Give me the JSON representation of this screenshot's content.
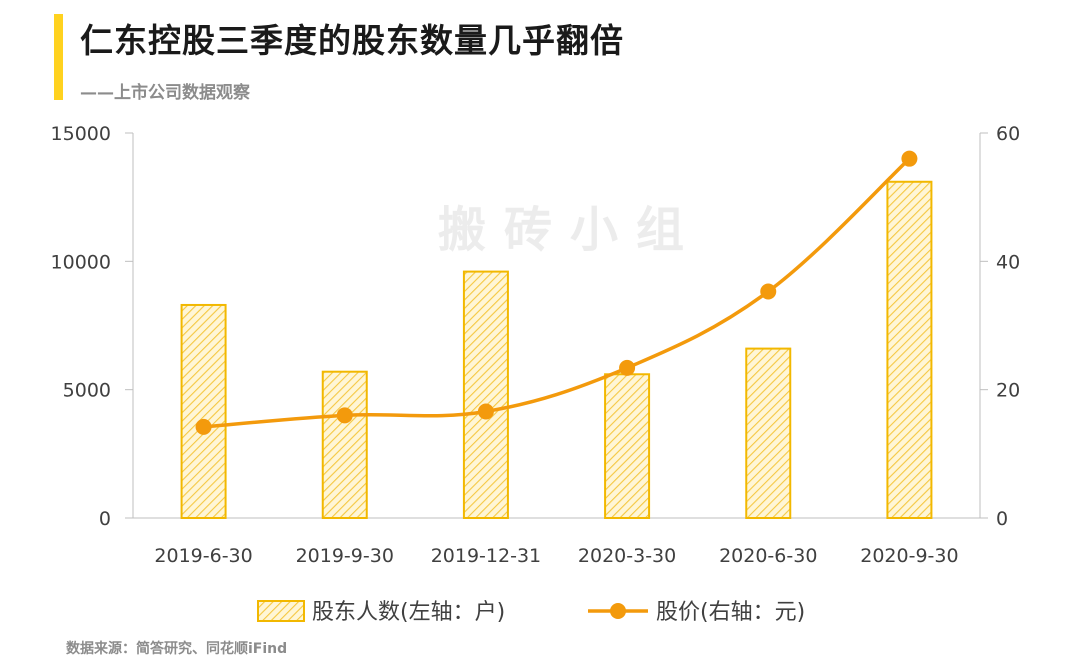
{
  "header": {
    "title": "仁东控股三季度的股东数量几乎翻倍",
    "subtitle": "——上市公司数据观察"
  },
  "watermark": "搬砖小组",
  "footer": {
    "source": "数据来源：简答研究、同花顺iFind"
  },
  "colors": {
    "bar_fill": "#FFE9A3",
    "bar_stroke": "#F2B800",
    "line": "#F39A0C",
    "accent": "#FFD21F"
  },
  "chart_data": {
    "type": "bar",
    "categories": [
      "2019-6-30",
      "2019-9-30",
      "2019-12-31",
      "2020-3-30",
      "2020-6-30",
      "2020-9-30"
    ],
    "series": [
      {
        "name": "股东人数(左轴：户)",
        "type": "bar",
        "axis": "left",
        "values": [
          8300,
          5700,
          9600,
          5600,
          6600,
          13100
        ]
      },
      {
        "name": "股价(右轴：元)",
        "type": "line",
        "axis": "right",
        "values": [
          14.2,
          16.0,
          16.6,
          23.4,
          35.3,
          56.0
        ]
      }
    ],
    "yleft": {
      "min": 0,
      "max": 15000,
      "ticks": [
        0,
        5000,
        10000,
        15000
      ]
    },
    "yright": {
      "min": 0,
      "max": 60,
      "ticks": [
        0,
        20,
        40,
        60
      ]
    },
    "grid": false,
    "legend": "bottom"
  }
}
